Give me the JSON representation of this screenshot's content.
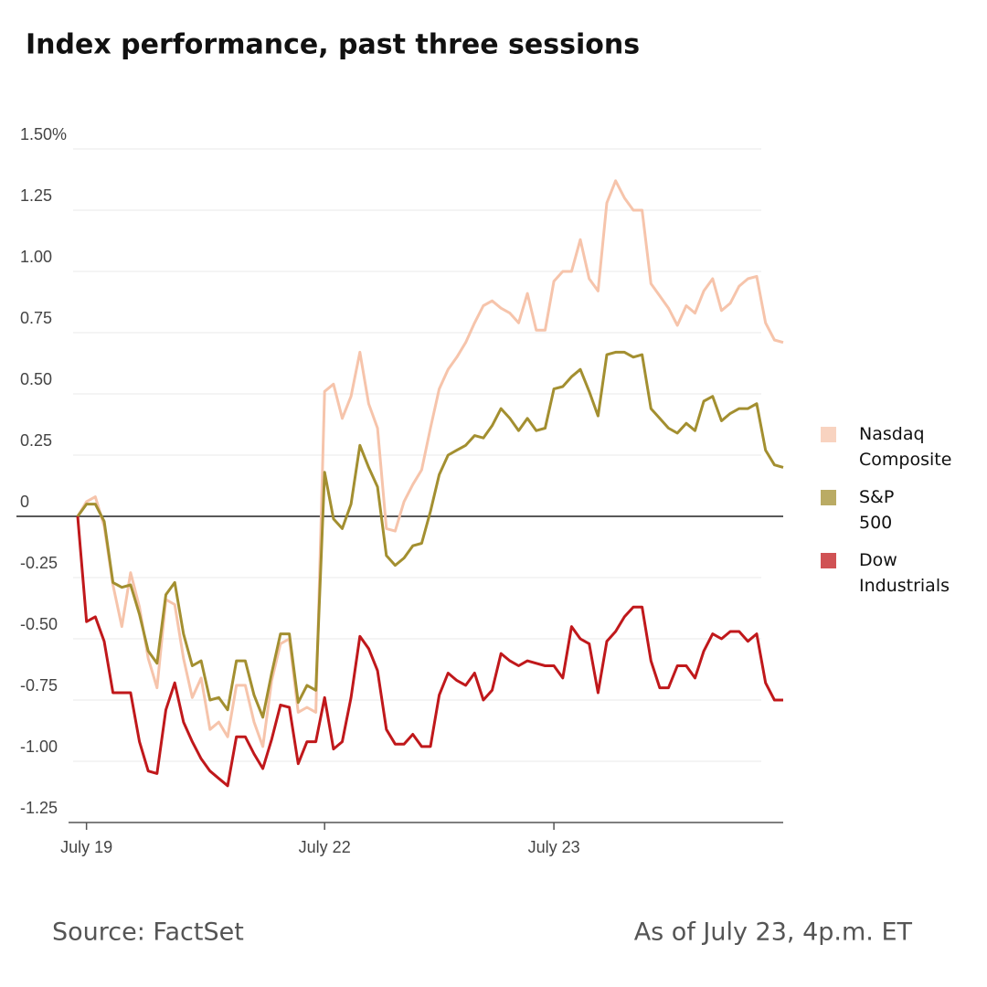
{
  "chart_data": {
    "type": "line",
    "title": "Index performance, past three sessions",
    "categories": [
      null,
      "July 19",
      null,
      null,
      null,
      null,
      null,
      null,
      null,
      null,
      null,
      null,
      null,
      null,
      null,
      null,
      null,
      null,
      null,
      null,
      null,
      null,
      null,
      null,
      null,
      null,
      null,
      null,
      "July 22",
      null,
      null,
      null,
      null,
      null,
      null,
      null,
      null,
      null,
      null,
      null,
      null,
      null,
      null,
      null,
      null,
      null,
      null,
      null,
      null,
      null,
      null,
      null,
      null,
      null,
      "July 23",
      null,
      null,
      null,
      null,
      null,
      null,
      null,
      null,
      null,
      null,
      null,
      null,
      null,
      null,
      null,
      null,
      null,
      null,
      null,
      null,
      null,
      null,
      null,
      null,
      null,
      null
    ],
    "series": [
      {
        "name": "Nasdaq Composite",
        "color": "#f6c4ab",
        "values": [
          0,
          0.06,
          0.08,
          -0.04,
          -0.28,
          -0.45,
          -0.23,
          -0.37,
          -0.58,
          -0.7,
          -0.34,
          -0.36,
          -0.58,
          -0.74,
          -0.66,
          -0.87,
          -0.84,
          -0.9,
          -0.69,
          -0.69,
          -0.84,
          -0.94,
          -0.67,
          -0.52,
          -0.5,
          -0.8,
          -0.78,
          -0.8,
          0.51,
          0.54,
          0.4,
          0.49,
          0.67,
          0.46,
          0.36,
          -0.05,
          -0.06,
          0.06,
          0.13,
          0.19,
          0.36,
          0.52,
          0.6,
          0.65,
          0.71,
          0.79,
          0.86,
          0.88,
          0.85,
          0.83,
          0.79,
          0.91,
          0.76,
          0.76,
          0.96,
          1.0,
          1.0,
          1.13,
          0.97,
          0.92,
          1.28,
          1.37,
          1.3,
          1.25,
          1.25,
          0.95,
          0.9,
          0.85,
          0.78,
          0.86,
          0.83,
          0.92,
          0.97,
          0.84,
          0.87,
          0.94,
          0.97,
          0.98,
          0.79,
          0.72,
          0.71
        ]
      },
      {
        "name": "S&P 500",
        "color": "#a38f30",
        "values": [
          0,
          0.05,
          0.05,
          -0.02,
          -0.27,
          -0.29,
          -0.28,
          -0.4,
          -0.55,
          -0.6,
          -0.32,
          -0.27,
          -0.48,
          -0.61,
          -0.59,
          -0.75,
          -0.74,
          -0.79,
          -0.59,
          -0.59,
          -0.73,
          -0.82,
          -0.64,
          -0.48,
          -0.48,
          -0.76,
          -0.69,
          -0.71,
          0.18,
          -0.01,
          -0.05,
          0.05,
          0.29,
          0.2,
          0.12,
          -0.16,
          -0.2,
          -0.17,
          -0.12,
          -0.11,
          0.02,
          0.17,
          0.25,
          0.27,
          0.29,
          0.33,
          0.32,
          0.37,
          0.44,
          0.4,
          0.35,
          0.4,
          0.35,
          0.36,
          0.52,
          0.53,
          0.57,
          0.6,
          0.51,
          0.41,
          0.66,
          0.67,
          0.67,
          0.65,
          0.66,
          0.44,
          0.4,
          0.36,
          0.34,
          0.38,
          0.35,
          0.47,
          0.49,
          0.39,
          0.42,
          0.44,
          0.44,
          0.46,
          0.27,
          0.21,
          0.2
        ]
      },
      {
        "name": "Dow Industrials",
        "color": "#c0181b",
        "values": [
          0,
          -0.43,
          -0.41,
          -0.51,
          -0.72,
          -0.72,
          -0.72,
          -0.92,
          -1.04,
          -1.05,
          -0.79,
          -0.68,
          -0.84,
          -0.92,
          -0.99,
          -1.04,
          -1.07,
          -1.1,
          -0.9,
          -0.9,
          -0.97,
          -1.03,
          -0.91,
          -0.77,
          -0.78,
          -1.01,
          -0.92,
          -0.92,
          -0.74,
          -0.95,
          -0.92,
          -0.74,
          -0.49,
          -0.54,
          -0.63,
          -0.87,
          -0.93,
          -0.93,
          -0.89,
          -0.94,
          -0.94,
          -0.73,
          -0.64,
          -0.67,
          -0.69,
          -0.64,
          -0.75,
          -0.71,
          -0.56,
          -0.59,
          -0.61,
          -0.59,
          -0.6,
          -0.61,
          -0.61,
          -0.66,
          -0.45,
          -0.5,
          -0.52,
          -0.72,
          -0.51,
          -0.47,
          -0.41,
          -0.37,
          -0.37,
          -0.59,
          -0.7,
          -0.7,
          -0.61,
          -0.61,
          -0.66,
          -0.55,
          -0.48,
          -0.5,
          -0.47,
          -0.47,
          -0.51,
          -0.48,
          -0.68,
          -0.75,
          -0.75
        ]
      }
    ],
    "ylim": [
      -1.25,
      1.5
    ],
    "yticks": [
      {
        "value": 1.5,
        "label": "1.50%"
      },
      1.25,
      {
        "value": 1,
        "label": "1.00"
      },
      0.75,
      {
        "value": 0.5,
        "label": "0.50"
      },
      0.25,
      0,
      -0.25,
      {
        "value": -0.5,
        "label": "-0.50"
      },
      -0.75,
      {
        "value": -1,
        "label": "-1.00"
      },
      -1.25
    ],
    "grid": true,
    "legend": "right"
  },
  "footer": {
    "source": "Source: FactSet",
    "note": "As of July 23, 4p.m. ET"
  }
}
